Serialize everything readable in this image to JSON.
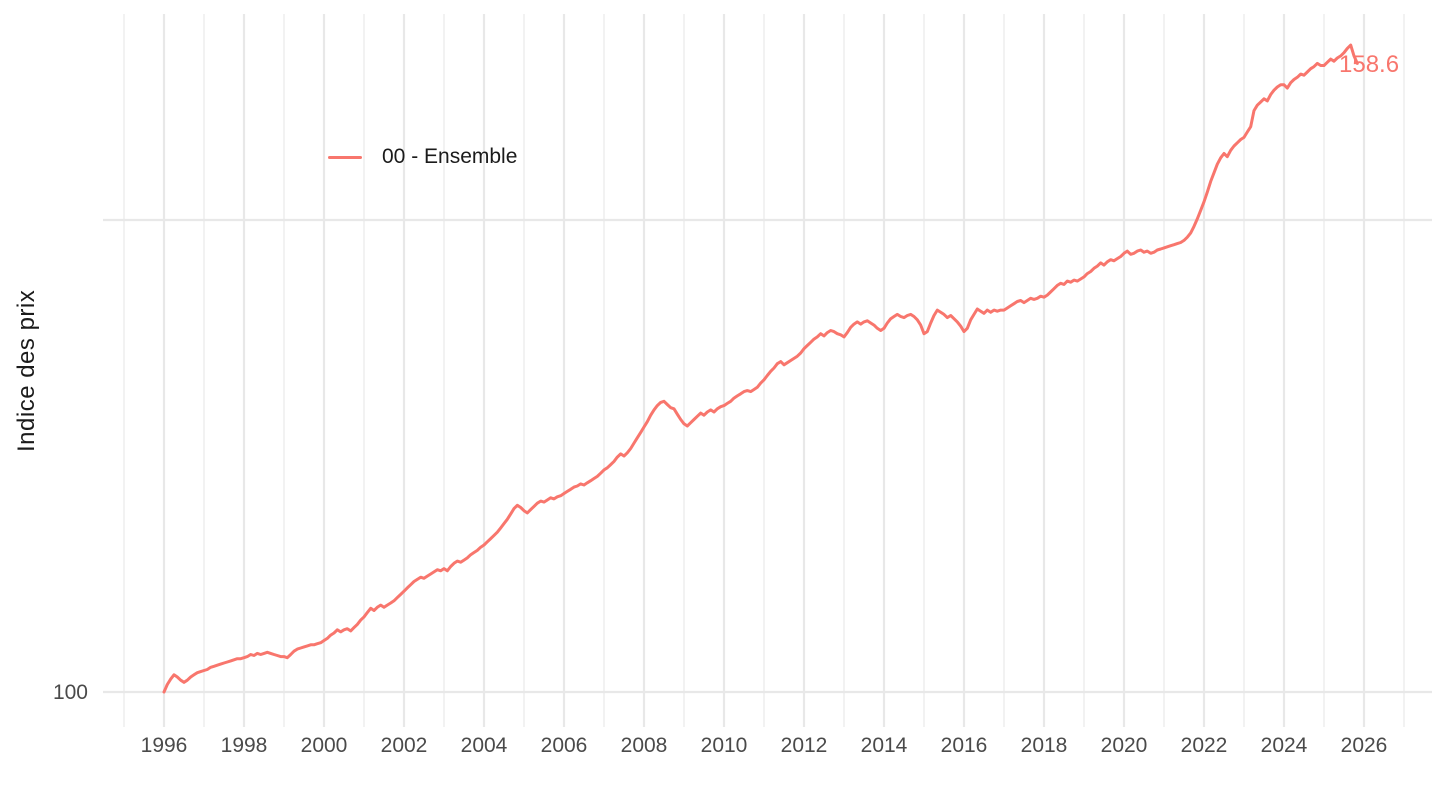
{
  "page": {
    "background": "#ffffff"
  },
  "y_axis": {
    "title": "Indice des prix"
  },
  "x_axis": {
    "title": ""
  },
  "legend": {
    "label": "00 - Ensemble"
  },
  "end_label": {
    "text": "158.6"
  },
  "chart_data": {
    "type": "line",
    "title": "",
    "xlabel": "",
    "ylabel": "Indice des prix",
    "legend_position": "inside-top-left",
    "grid": "on",
    "x_tick_years": [
      1996,
      1998,
      2000,
      2002,
      2004,
      2006,
      2008,
      2010,
      2012,
      2014,
      2016,
      2018,
      2020,
      2022,
      2024,
      2026
    ],
    "x_gridlines": {
      "from": 1995,
      "to": 2027,
      "interval": 1
    },
    "y_gridlines": [
      {
        "value": 100,
        "label": "100"
      },
      {
        "value": 144,
        "label": ""
      }
    ],
    "xlim": [
      1994.5,
      2027.7
    ],
    "ylim": [
      96.8,
      163.2
    ],
    "colors": {
      "line": "#F8766D",
      "grid_major": "#e8e8e8",
      "grid_minor": "#f0f0f0",
      "tick_text": "#4a4a4a",
      "axis_title_text": "#1b1b1b"
    },
    "series": [
      {
        "name": "00 - Ensemble",
        "color": "#F8766D",
        "x_start_year": 1996.0,
        "x_step_months": 1,
        "last_value_label": "158.6",
        "values": [
          100.0,
          100.7,
          101.2,
          101.6,
          101.4,
          101.1,
          100.9,
          101.1,
          101.4,
          101.6,
          101.8,
          101.9,
          102.0,
          102.1,
          102.3,
          102.4,
          102.5,
          102.6,
          102.7,
          102.8,
          102.9,
          103.0,
          103.1,
          103.1,
          103.2,
          103.3,
          103.5,
          103.4,
          103.6,
          103.5,
          103.6,
          103.7,
          103.6,
          103.5,
          103.4,
          103.3,
          103.3,
          103.2,
          103.5,
          103.8,
          104.0,
          104.1,
          104.2,
          104.3,
          104.4,
          104.4,
          104.5,
          104.6,
          104.8,
          105.0,
          105.3,
          105.5,
          105.8,
          105.6,
          105.8,
          105.9,
          105.7,
          106.0,
          106.3,
          106.7,
          107.0,
          107.4,
          107.8,
          107.6,
          107.9,
          108.1,
          107.9,
          108.1,
          108.3,
          108.5,
          108.8,
          109.1,
          109.4,
          109.7,
          110.0,
          110.3,
          110.5,
          110.7,
          110.6,
          110.8,
          111.0,
          111.2,
          111.4,
          111.3,
          111.5,
          111.3,
          111.7,
          112.0,
          112.2,
          112.1,
          112.3,
          112.5,
          112.8,
          113.0,
          113.2,
          113.5,
          113.7,
          114.0,
          114.3,
          114.6,
          114.9,
          115.3,
          115.7,
          116.1,
          116.6,
          117.1,
          117.4,
          117.2,
          116.9,
          116.7,
          117.0,
          117.3,
          117.6,
          117.8,
          117.7,
          117.9,
          118.1,
          118.0,
          118.2,
          118.3,
          118.5,
          118.7,
          118.9,
          119.1,
          119.2,
          119.4,
          119.3,
          119.5,
          119.7,
          119.9,
          120.1,
          120.4,
          120.7,
          120.9,
          121.2,
          121.5,
          121.9,
          122.2,
          122.0,
          122.3,
          122.7,
          123.2,
          123.7,
          124.2,
          124.7,
          125.2,
          125.8,
          126.3,
          126.7,
          127.0,
          127.1,
          126.8,
          126.5,
          126.4,
          125.9,
          125.4,
          125.0,
          124.8,
          125.1,
          125.4,
          125.7,
          126.0,
          125.8,
          126.1,
          126.3,
          126.1,
          126.4,
          126.6,
          126.7,
          126.9,
          127.1,
          127.4,
          127.6,
          127.8,
          128.0,
          128.1,
          128.0,
          128.2,
          128.4,
          128.8,
          129.1,
          129.5,
          129.9,
          130.2,
          130.6,
          130.8,
          130.5,
          130.7,
          130.9,
          131.1,
          131.3,
          131.6,
          132.0,
          132.3,
          132.6,
          132.9,
          133.1,
          133.4,
          133.2,
          133.5,
          133.7,
          133.6,
          133.4,
          133.3,
          133.1,
          133.5,
          134.0,
          134.3,
          134.5,
          134.3,
          134.5,
          134.6,
          134.4,
          134.2,
          133.9,
          133.7,
          133.9,
          134.4,
          134.8,
          135.0,
          135.2,
          135.0,
          134.9,
          135.1,
          135.2,
          135.0,
          134.7,
          134.2,
          133.4,
          133.6,
          134.4,
          135.1,
          135.6,
          135.4,
          135.2,
          134.9,
          135.1,
          134.8,
          134.5,
          134.1,
          133.6,
          133.9,
          134.7,
          135.2,
          135.7,
          135.5,
          135.3,
          135.6,
          135.4,
          135.6,
          135.5,
          135.6,
          135.6,
          135.8,
          136.0,
          136.2,
          136.4,
          136.5,
          136.3,
          136.5,
          136.7,
          136.6,
          136.7,
          136.9,
          136.8,
          137.0,
          137.3,
          137.6,
          137.9,
          138.1,
          138.0,
          138.3,
          138.2,
          138.4,
          138.3,
          138.5,
          138.7,
          139.0,
          139.2,
          139.5,
          139.7,
          140.0,
          139.8,
          140.1,
          140.3,
          140.2,
          140.4,
          140.6,
          140.9,
          141.1,
          140.8,
          140.9,
          141.1,
          141.2,
          141.0,
          141.1,
          140.9,
          141.0,
          141.2,
          141.3,
          141.4,
          141.5,
          141.6,
          141.7,
          141.8,
          141.9,
          142.1,
          142.4,
          142.8,
          143.4,
          144.1,
          144.9,
          145.7,
          146.6,
          147.6,
          148.4,
          149.2,
          149.8,
          150.2,
          149.9,
          150.5,
          150.9,
          151.2,
          151.5,
          151.7,
          152.2,
          152.7,
          154.2,
          154.7,
          155.0,
          155.3,
          155.1,
          155.7,
          156.1,
          156.4,
          156.6,
          156.6,
          156.3,
          156.8,
          157.1,
          157.3,
          157.6,
          157.5,
          157.8,
          158.1,
          158.3,
          158.6,
          158.4,
          158.4,
          158.7,
          159.0,
          158.8,
          159.1,
          159.3,
          159.6,
          160.0,
          160.3,
          159.3,
          158.6
        ]
      }
    ]
  }
}
